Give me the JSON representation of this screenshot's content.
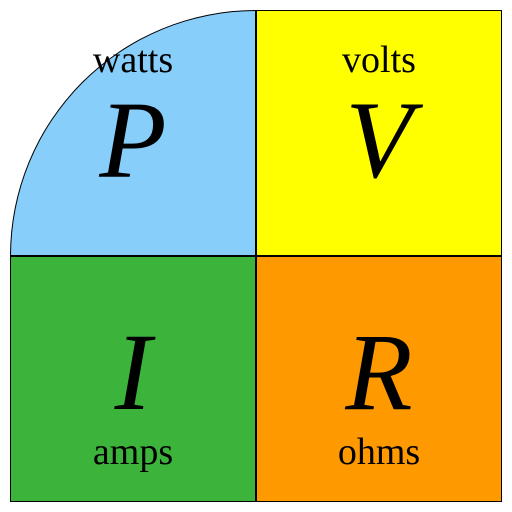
{
  "diagram": {
    "type": "infographic",
    "size": 512,
    "padding": 10,
    "background_color": "#ffffff",
    "border_color": "#000000",
    "border_width": 1,
    "symbol_fontsize": 110,
    "unit_fontsize": 38,
    "font_family": "Times New Roman, Times, serif",
    "quadrants": {
      "top_left": {
        "symbol": "P",
        "unit": "watts",
        "bg_color": "#87cefa",
        "unit_position": "above",
        "rounded_corner": "top-left"
      },
      "top_right": {
        "symbol": "V",
        "unit": "volts",
        "bg_color": "#ffff00",
        "unit_position": "above",
        "rounded_corner": "none"
      },
      "bottom_left": {
        "symbol": "I",
        "unit": "amps",
        "bg_color": "#3cb43c",
        "unit_position": "below",
        "rounded_corner": "none"
      },
      "bottom_right": {
        "symbol": "R",
        "unit": "ohms",
        "bg_color": "#ff9900",
        "unit_position": "below",
        "rounded_corner": "none"
      }
    }
  }
}
